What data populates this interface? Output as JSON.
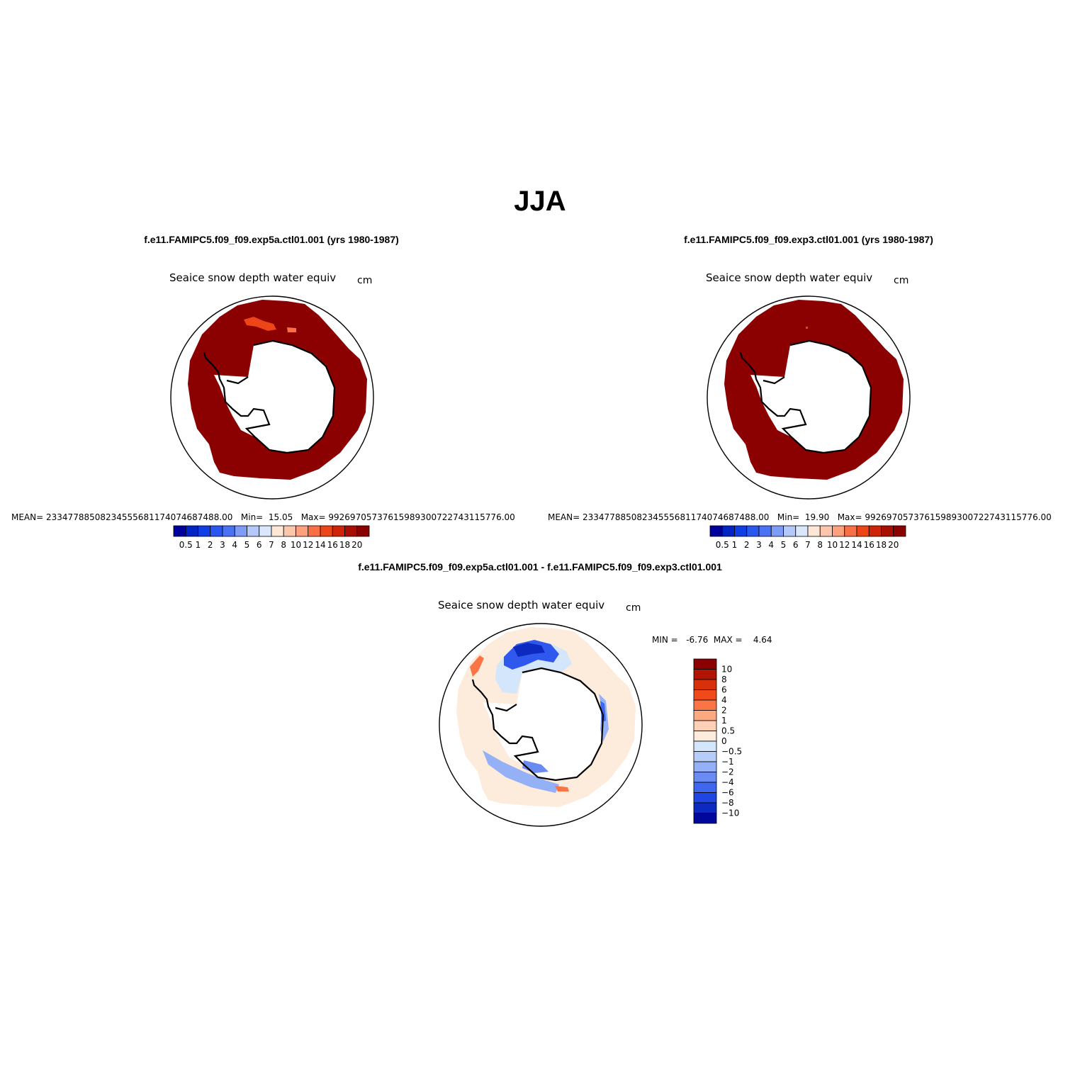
{
  "figure": {
    "title": "JJA"
  },
  "panels": [
    {
      "title": "f.e11.FAMIPC5.f09_f09.exp5a.ctl01.001 (yrs 1980-1987)",
      "variable": "Seaice snow depth water equiv",
      "units": "cm",
      "stats": {
        "mean_label": "MEAN=",
        "mean": "23347788508234555681174074687488.00",
        "min_label": "Min=",
        "min": "15.05",
        "max_label": "Max=",
        "max": "99269705737615989300722743115776.00"
      },
      "colorbar": {
        "labels": [
          "0.5",
          "1",
          "2",
          "3",
          "4",
          "5",
          "6",
          "7",
          "8",
          "10",
          "12",
          "14",
          "16",
          "18",
          "20"
        ],
        "colors": [
          "#00009c",
          "#0025c4",
          "#0f3ee6",
          "#2957f0",
          "#4a72f5",
          "#7d9bf7",
          "#b4c8fa",
          "#d9e6fc",
          "#fde6d6",
          "#fcc6ad",
          "#fca07e",
          "#fa6f45",
          "#ee4518",
          "#cf2408",
          "#a80f02",
          "#8b0000"
        ]
      }
    },
    {
      "title": "f.e11.FAMIPC5.f09_f09.exp3.ctl01.001 (yrs 1980-1987)",
      "variable": "Seaice snow depth water equiv",
      "units": "cm",
      "stats": {
        "mean_label": "MEAN=",
        "mean": "23347788508234555681174074687488.00",
        "min_label": "Min=",
        "min": "19.90",
        "max_label": "Max=",
        "max": "99269705737615989300722743115776.00"
      },
      "colorbar": {
        "labels": [
          "0.5",
          "1",
          "2",
          "3",
          "4",
          "5",
          "6",
          "7",
          "8",
          "10",
          "12",
          "14",
          "16",
          "18",
          "20"
        ],
        "colors": [
          "#00009c",
          "#0025c4",
          "#0f3ee6",
          "#2957f0",
          "#4a72f5",
          "#7d9bf7",
          "#b4c8fa",
          "#d9e6fc",
          "#fde6d6",
          "#fcc6ad",
          "#fca07e",
          "#fa6f45",
          "#ee4518",
          "#cf2408",
          "#a80f02",
          "#8b0000"
        ]
      }
    }
  ],
  "difference": {
    "title": "f.e11.FAMIPC5.f09_f09.exp5a.ctl01.001 - f.e11.FAMIPC5.f09_f09.exp3.ctl01.001",
    "variable": "Seaice snow depth water equiv",
    "units": "cm",
    "min_label": "MIN =",
    "min": "-6.76",
    "max_label": "MAX =",
    "max": "4.64",
    "colorbar": {
      "labels": [
        "10",
        "8",
        "6",
        "4",
        "2",
        "1",
        "0.5",
        "0",
        "−0.5",
        "−1",
        "−2",
        "−4",
        "−6",
        "−8",
        "−10"
      ],
      "colors": [
        "#8b0000",
        "#b21404",
        "#d8300a",
        "#f04a1a",
        "#fa7545",
        "#fca880",
        "#fdd0b8",
        "#fdebdc",
        "#d4e6fb",
        "#b7cdf9",
        "#94b0f6",
        "#6a8cf2",
        "#3f66ef",
        "#1f45e2",
        "#0d2ac0",
        "#00089c"
      ]
    }
  }
}
